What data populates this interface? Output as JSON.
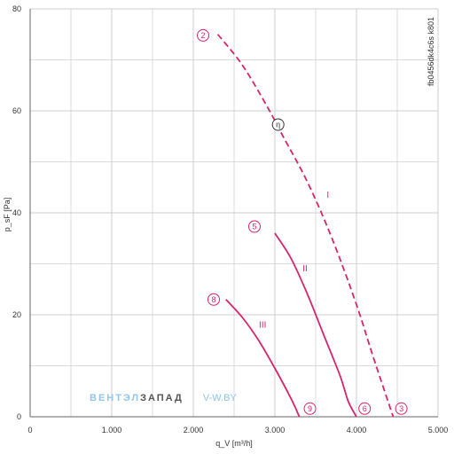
{
  "chart_data": {
    "type": "line",
    "ylabel": "p_sF [Pa]",
    "xlabel": "q_V [m³/h]",
    "xlim": [
      0,
      5000
    ],
    "ylim": [
      0,
      80
    ],
    "x_ticks": [
      0,
      1000,
      2000,
      3000,
      4000,
      5000
    ],
    "x_tick_labels": [
      "0",
      "1.000",
      "2.000",
      "3.000",
      "4.000",
      "5.000"
    ],
    "y_ticks": [
      0,
      20,
      40,
      60,
      80
    ],
    "y_tick_labels": [
      "0",
      "20",
      "40",
      "60",
      "80"
    ],
    "grid": true,
    "code": "fb0456dk4c6s k801",
    "series": [
      {
        "name": "I",
        "dash": true,
        "start_marker": "2",
        "end_marker": "3",
        "x": [
          2300,
          2600,
          2900,
          3100,
          3400,
          3700,
          4000,
          4200,
          4450
        ],
        "y": [
          75,
          69,
          61,
          55,
          46,
          35,
          22,
          12,
          0
        ]
      },
      {
        "name": "II",
        "dash": false,
        "start_marker": "5",
        "end_marker": "6",
        "x": [
          3000,
          3200,
          3400,
          3600,
          3800,
          3900,
          4000
        ],
        "y": [
          36,
          31,
          24,
          16,
          8,
          3,
          0
        ]
      },
      {
        "name": "III",
        "dash": false,
        "start_marker": "8",
        "end_marker": "9",
        "x": [
          2400,
          2600,
          2800,
          3000,
          3200,
          3300
        ],
        "y": [
          23,
          19.5,
          15,
          9.5,
          3.5,
          0
        ]
      }
    ],
    "annotations": [
      {
        "text": "I",
        "x": 3650,
        "y": 43
      },
      {
        "text": "II",
        "x": 3370,
        "y": 28.5
      },
      {
        "text": "III",
        "x": 2850,
        "y": 17.5
      }
    ],
    "markers": [
      {
        "text": "2",
        "x": 2120,
        "y": 74.8,
        "style": "pink"
      },
      {
        "text": "5",
        "x": 2750,
        "y": 37.3,
        "style": "pink"
      },
      {
        "text": "8",
        "x": 2250,
        "y": 23,
        "style": "pink"
      },
      {
        "text": "9",
        "x": 3430,
        "y": 1.6,
        "style": "pink"
      },
      {
        "text": "6",
        "x": 4100,
        "y": 1.6,
        "style": "pink"
      },
      {
        "text": "3",
        "x": 4550,
        "y": 1.6,
        "style": "pink"
      },
      {
        "text": "η",
        "x": 3040,
        "y": 57.3,
        "style": "dark"
      }
    ]
  },
  "watermark": {
    "part1": "ВЕНТЭЛ",
    "part2": "ЗАПАД",
    "part3": "V-W.BY"
  },
  "colors": {
    "curve": "#d6246e",
    "grid": "#cfcfcf",
    "axis": "#666666",
    "marker_dark": "#333333"
  }
}
